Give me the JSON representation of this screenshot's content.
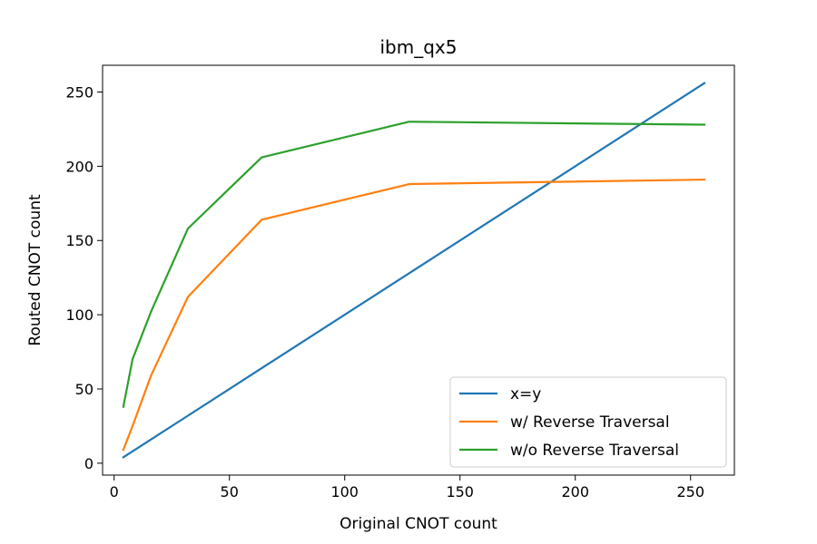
{
  "chart_data": {
    "type": "line",
    "title": "ibm_qx5",
    "xlabel": "Original CNOT count",
    "ylabel": "Routed CNOT count",
    "xlim": [
      -5,
      269
    ],
    "ylim": [
      -8,
      268
    ],
    "xticks": [
      0,
      50,
      100,
      150,
      200,
      250
    ],
    "yticks": [
      0,
      50,
      100,
      150,
      200,
      250
    ],
    "grid": false,
    "legend_position": "lower-right",
    "series": [
      {
        "name": "x=y",
        "color": "#1f77b4",
        "x": [
          4,
          8,
          16,
          32,
          64,
          128,
          256
        ],
        "y": [
          4,
          8,
          16,
          32,
          64,
          128,
          256
        ]
      },
      {
        "name": "w/ Reverse Traversal",
        "color": "#ff7f0e",
        "x": [
          4,
          8,
          16,
          32,
          64,
          128,
          256
        ],
        "y": [
          9,
          25,
          59,
          112,
          164,
          188,
          191
        ]
      },
      {
        "name": "w/o Reverse Traversal",
        "color": "#2ca02c",
        "x": [
          4,
          8,
          16,
          32,
          64,
          128,
          256
        ],
        "y": [
          38,
          70,
          102,
          158,
          206,
          230,
          228
        ]
      }
    ]
  }
}
